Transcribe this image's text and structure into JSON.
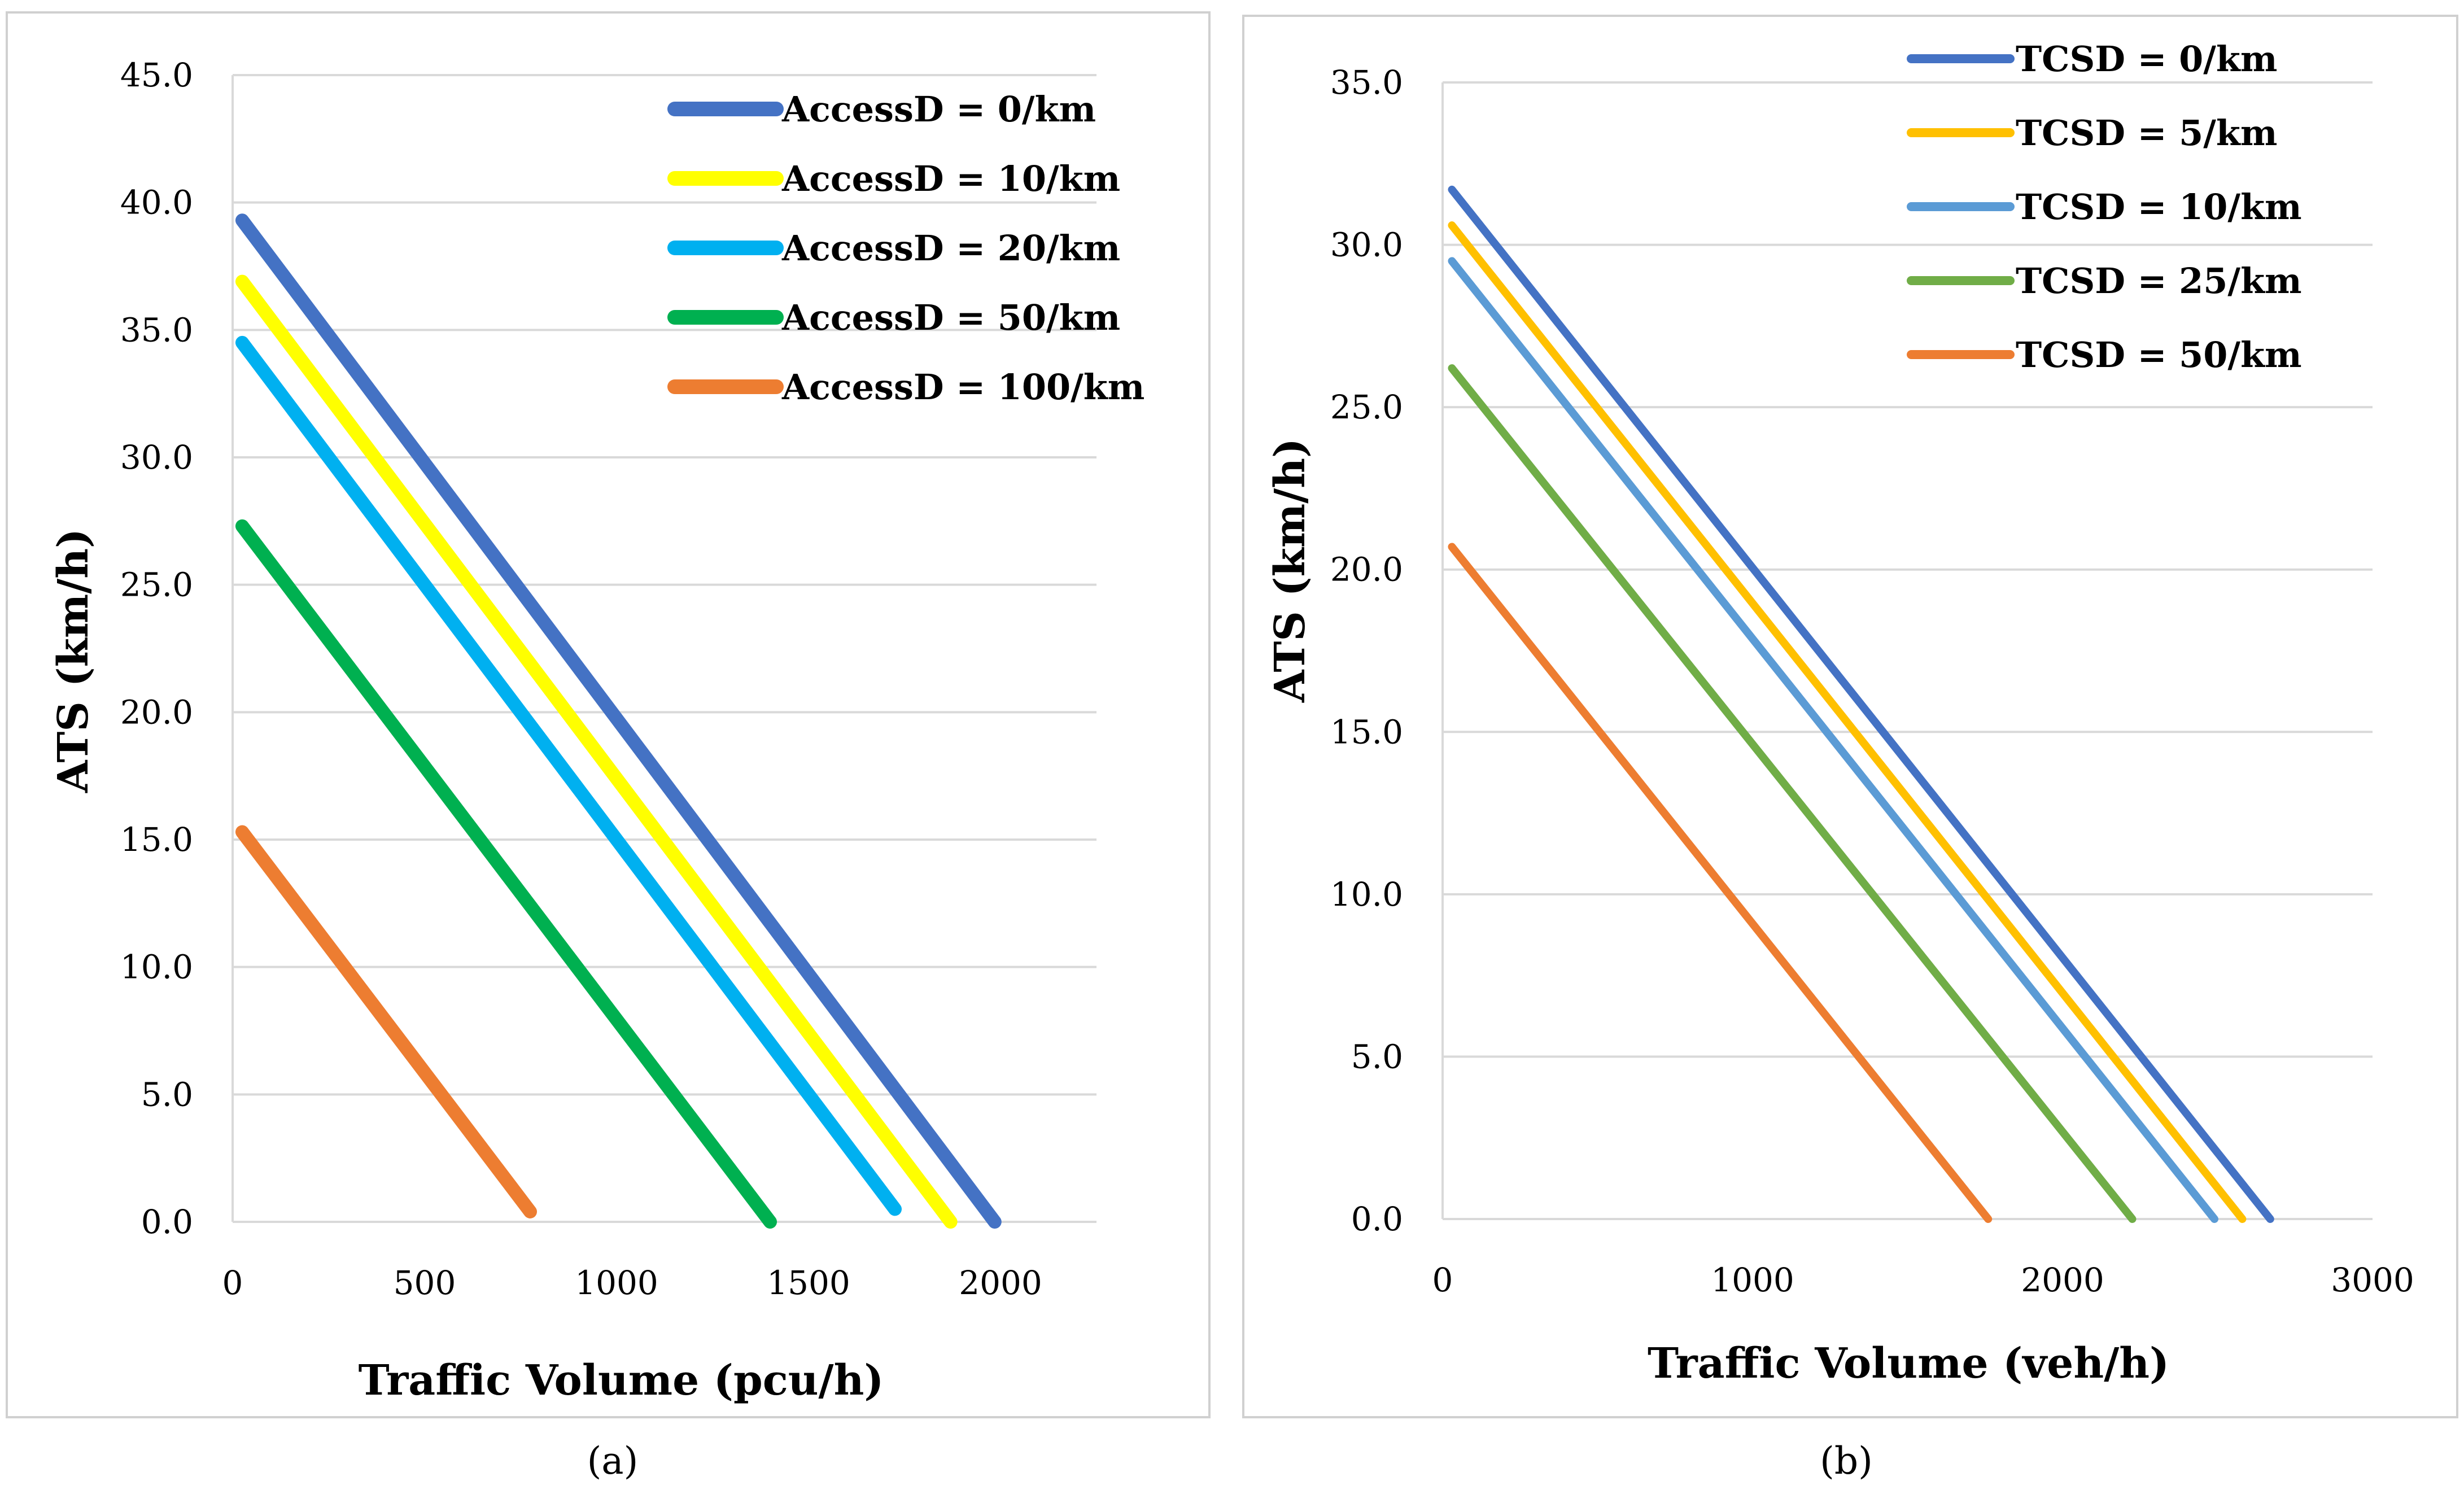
{
  "chart_data": [
    {
      "type": "line",
      "caption": "(a)",
      "xlabel": "Traffic Volume (pcu/h)",
      "ylabel": "ATS (km/h)",
      "xlim": [
        0,
        2250
      ],
      "ylim": [
        0,
        45
      ],
      "xticks": [
        0,
        500,
        1000,
        1500,
        2000
      ],
      "yticks": [
        0,
        5,
        10,
        15,
        20,
        25,
        30,
        35,
        40,
        45
      ],
      "xtick_labels": [
        "0",
        "500",
        "1000",
        "1500",
        "2000"
      ],
      "ytick_labels": [
        "0.0",
        "5.0",
        "10.0",
        "15.0",
        "20.0",
        "25.0",
        "30.0",
        "35.0",
        "40.0",
        "45.0"
      ],
      "grid": "horizontal",
      "legend_position": "top-right",
      "series": [
        {
          "name": "AccessD = 0/km",
          "color": "#4472C4",
          "x": [
            25,
            1985
          ],
          "y": [
            39.3,
            0.0
          ]
        },
        {
          "name": "AccessD = 10/km",
          "color": "#FFFF00",
          "x": [
            25,
            1870
          ],
          "y": [
            36.9,
            0.0
          ]
        },
        {
          "name": "AccessD = 20/km",
          "color": "#00B0F0",
          "x": [
            25,
            1725
          ],
          "y": [
            34.5,
            0.5
          ]
        },
        {
          "name": "AccessD = 50/km",
          "color": "#00B050",
          "x": [
            25,
            1400
          ],
          "y": [
            27.3,
            0.0
          ]
        },
        {
          "name": "AccessD = 100/km",
          "color": "#ED7D31",
          "x": [
            25,
            775
          ],
          "y": [
            15.3,
            0.4
          ]
        }
      ]
    },
    {
      "type": "line",
      "caption": "(b)",
      "xlabel": "Traffic Volume (veh/h)",
      "ylabel": "ATS (km/h)",
      "xlim": [
        0,
        3000
      ],
      "ylim": [
        0,
        35
      ],
      "xticks": [
        0,
        1000,
        2000,
        3000
      ],
      "yticks": [
        0,
        5,
        10,
        15,
        20,
        25,
        30,
        35
      ],
      "xtick_labels": [
        "0",
        "1000",
        "2000",
        "3000"
      ],
      "ytick_labels": [
        "0.0",
        "5.0",
        "10.0",
        "15.0",
        "20.0",
        "25.0",
        "30.0",
        "35.0"
      ],
      "grid": "horizontal",
      "legend_position": "top-right",
      "series": [
        {
          "name": "TCSD = 0/km",
          "color": "#4472C4",
          "x": [
            30,
            2670
          ],
          "y": [
            31.7,
            0.0
          ]
        },
        {
          "name": "TCSD = 5/km",
          "color": "#FFC000",
          "x": [
            30,
            2580
          ],
          "y": [
            30.6,
            0.0
          ]
        },
        {
          "name": "TCSD = 10/km",
          "color": "#5B9BD5",
          "x": [
            30,
            2490
          ],
          "y": [
            29.5,
            0.0
          ]
        },
        {
          "name": "TCSD = 25/km",
          "color": "#70AD47",
          "x": [
            30,
            2225
          ],
          "y": [
            26.2,
            0.0
          ]
        },
        {
          "name": "TCSD = 50/km",
          "color": "#ED7D31",
          "x": [
            30,
            1760
          ],
          "y": [
            20.7,
            0.0
          ]
        }
      ]
    }
  ]
}
